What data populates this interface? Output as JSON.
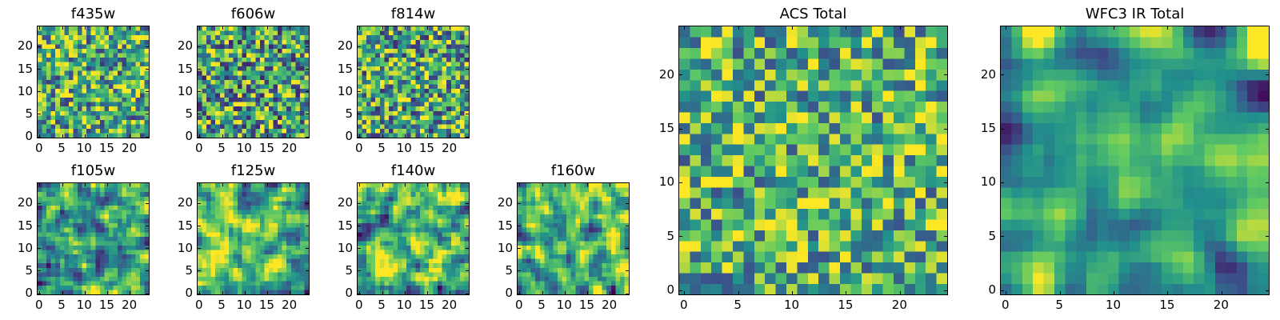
{
  "colors": {
    "colormap": "viridis",
    "viridis_stops": [
      "#440154",
      "#3b528b",
      "#21918c",
      "#5ec962",
      "#fde725"
    ]
  },
  "chart_data": [
    {
      "id": "f435w",
      "type": "heatmap",
      "title": "f435w",
      "grid_size": 25,
      "xlim": [
        -0.5,
        24.5
      ],
      "ylim": [
        -0.5,
        24.5
      ],
      "xticks": [
        0,
        5,
        10,
        15,
        20
      ],
      "yticks": [
        0,
        5,
        10,
        15,
        20
      ],
      "xticklabels": [
        "0",
        "5",
        "10",
        "15",
        "20"
      ],
      "yticklabels": [
        "0",
        "5",
        "10",
        "15",
        "20"
      ],
      "noise_seed": 11,
      "smoothness": 0,
      "value_center": 0.62,
      "value_spread": 0.55
    },
    {
      "id": "f606w",
      "type": "heatmap",
      "title": "f606w",
      "grid_size": 25,
      "xlim": [
        -0.5,
        24.5
      ],
      "ylim": [
        -0.5,
        24.5
      ],
      "xticks": [
        0,
        5,
        10,
        15,
        20
      ],
      "yticks": [
        0,
        5,
        10,
        15,
        20
      ],
      "xticklabels": [
        "0",
        "5",
        "10",
        "15",
        "20"
      ],
      "yticklabels": [
        "0",
        "5",
        "10",
        "15",
        "20"
      ],
      "noise_seed": 23,
      "smoothness": 0,
      "value_center": 0.58,
      "value_spread": 0.6
    },
    {
      "id": "f814w",
      "type": "heatmap",
      "title": "f814w",
      "grid_size": 25,
      "xlim": [
        -0.5,
        24.5
      ],
      "ylim": [
        -0.5,
        24.5
      ],
      "xticks": [
        0,
        5,
        10,
        15,
        20
      ],
      "yticks": [
        0,
        5,
        10,
        15,
        20
      ],
      "xticklabels": [
        "0",
        "5",
        "10",
        "15",
        "20"
      ],
      "yticklabels": [
        "0",
        "5",
        "10",
        "15",
        "20"
      ],
      "noise_seed": 37,
      "smoothness": 0,
      "value_center": 0.6,
      "value_spread": 0.58
    },
    {
      "id": "f105w",
      "type": "heatmap",
      "title": "f105w",
      "grid_size": 25,
      "xlim": [
        -0.5,
        24.5
      ],
      "ylim": [
        -0.5,
        24.5
      ],
      "xticks": [
        0,
        5,
        10,
        15,
        20
      ],
      "yticks": [
        0,
        5,
        10,
        15,
        20
      ],
      "xticklabels": [
        "0",
        "5",
        "10",
        "15",
        "20"
      ],
      "yticklabels": [
        "0",
        "5",
        "10",
        "15",
        "20"
      ],
      "noise_seed": 41,
      "smoothness": 1,
      "value_center": 0.62,
      "value_spread": 0.75
    },
    {
      "id": "f125w",
      "type": "heatmap",
      "title": "f125w",
      "grid_size": 25,
      "xlim": [
        -0.5,
        24.5
      ],
      "ylim": [
        -0.5,
        24.5
      ],
      "xticks": [
        0,
        5,
        10,
        15,
        20
      ],
      "yticks": [
        0,
        5,
        10,
        15,
        20
      ],
      "xticklabels": [
        "0",
        "5",
        "10",
        "15",
        "20"
      ],
      "yticklabels": [
        "0",
        "5",
        "10",
        "15",
        "20"
      ],
      "noise_seed": 53,
      "smoothness": 1,
      "value_center": 0.64,
      "value_spread": 0.75
    },
    {
      "id": "f140w",
      "type": "heatmap",
      "title": "f140w",
      "grid_size": 25,
      "xlim": [
        -0.5,
        24.5
      ],
      "ylim": [
        -0.5,
        24.5
      ],
      "xticks": [
        0,
        5,
        10,
        15,
        20
      ],
      "yticks": [
        0,
        5,
        10,
        15,
        20
      ],
      "xticklabels": [
        "0",
        "5",
        "10",
        "15",
        "20"
      ],
      "yticklabels": [
        "0",
        "5",
        "10",
        "15",
        "20"
      ],
      "noise_seed": 67,
      "smoothness": 1,
      "value_center": 0.63,
      "value_spread": 0.78
    },
    {
      "id": "f160w",
      "type": "heatmap",
      "title": "f160w",
      "grid_size": 25,
      "xlim": [
        -0.5,
        24.5
      ],
      "ylim": [
        -0.5,
        24.5
      ],
      "xticks": [
        0,
        5,
        10,
        15,
        20
      ],
      "yticks": [
        0,
        5,
        10,
        15,
        20
      ],
      "xticklabels": [
        "0",
        "5",
        "10",
        "15",
        "20"
      ],
      "yticklabels": [
        "0",
        "5",
        "10",
        "15",
        "20"
      ],
      "noise_seed": 79,
      "smoothness": 1,
      "value_center": 0.62,
      "value_spread": 0.78
    },
    {
      "id": "acs-total",
      "type": "heatmap",
      "title": "ACS Total",
      "grid_size": 25,
      "xlim": [
        -0.5,
        24.5
      ],
      "ylim": [
        -0.5,
        24.5
      ],
      "xticks": [
        0,
        5,
        10,
        15,
        20
      ],
      "yticks": [
        0,
        5,
        10,
        15,
        20
      ],
      "xticklabels": [
        "0",
        "5",
        "10",
        "15",
        "20"
      ],
      "yticklabels": [
        "0",
        "5",
        "10",
        "15",
        "20"
      ],
      "noise_seed": 97,
      "smoothness": 0,
      "value_center": 0.64,
      "value_spread": 0.5
    },
    {
      "id": "wfc3-ir-total",
      "type": "heatmap",
      "title": "WFC3 IR Total",
      "grid_size": 25,
      "xlim": [
        -0.5,
        24.5
      ],
      "ylim": [
        -0.5,
        24.5
      ],
      "xticks": [
        0,
        5,
        10,
        15,
        20
      ],
      "yticks": [
        0,
        5,
        10,
        15,
        20
      ],
      "xticklabels": [
        "0",
        "5",
        "10",
        "15",
        "20"
      ],
      "yticklabels": [
        "0",
        "5",
        "10",
        "15",
        "20"
      ],
      "noise_seed": 113,
      "smoothness": 2,
      "value_center": 0.6,
      "value_spread": 0.7
    }
  ]
}
